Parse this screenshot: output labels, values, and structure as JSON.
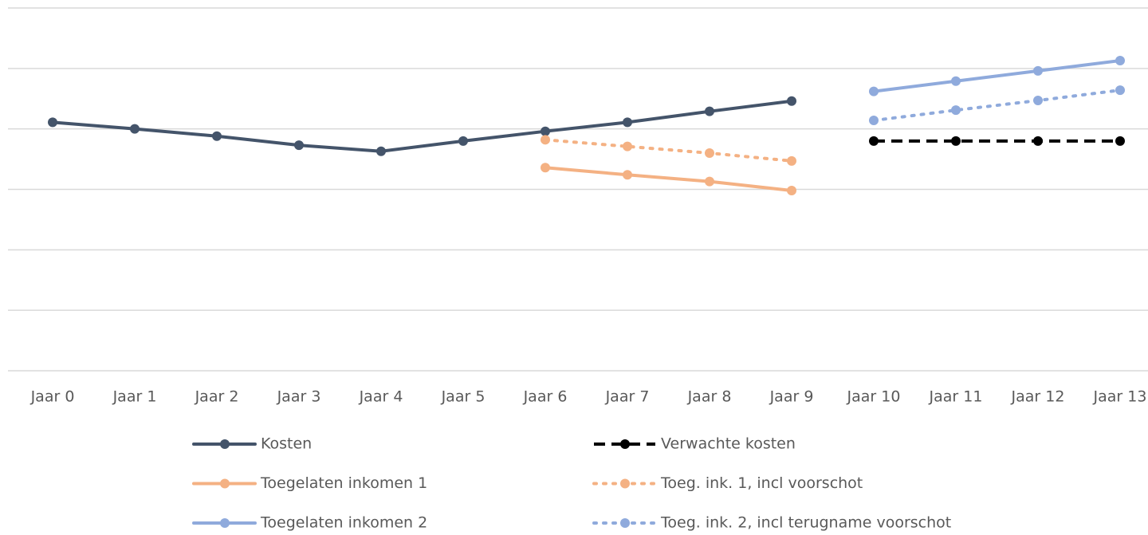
{
  "chart_data": {
    "type": "line",
    "categories": [
      "Jaar 0",
      "Jaar 1",
      "Jaar 2",
      "Jaar 3",
      "Jaar 4",
      "Jaar 5",
      "Jaar 6",
      "Jaar 7",
      "Jaar 8",
      "Jaar 9",
      "Jaar 10",
      "Jaar 11",
      "Jaar 12",
      "Jaar 13"
    ],
    "series": [
      {
        "name": "Kosten",
        "color": "#44546a",
        "dash": "solid",
        "values": [
          4.11,
          4.0,
          3.88,
          3.73,
          3.63,
          3.8,
          3.96,
          4.11,
          4.29,
          4.46,
          null,
          null,
          null,
          null
        ]
      },
      {
        "name": "Verwachte kosten",
        "color": "#000000",
        "dash": "dashed",
        "values": [
          null,
          null,
          null,
          null,
          null,
          null,
          null,
          null,
          null,
          null,
          3.8,
          3.8,
          3.8,
          3.8
        ]
      },
      {
        "name": "Toegelaten inkomen 1",
        "color": "#f4b183",
        "dash": "solid",
        "values": [
          null,
          null,
          null,
          null,
          null,
          null,
          3.36,
          3.24,
          3.13,
          2.98,
          null,
          null,
          null,
          null
        ]
      },
      {
        "name": "Toeg. ink. 1, incl voorschot",
        "color": "#f4b183",
        "dash": "dotted",
        "values": [
          null,
          null,
          null,
          null,
          null,
          null,
          3.82,
          3.71,
          3.6,
          3.47,
          null,
          null,
          null,
          null
        ]
      },
      {
        "name": "Toegelaten inkomen 2",
        "color": "#8faadc",
        "dash": "solid",
        "values": [
          null,
          null,
          null,
          null,
          null,
          null,
          null,
          null,
          null,
          null,
          4.62,
          4.79,
          4.96,
          5.13
        ]
      },
      {
        "name": "Toeg. ink. 2, incl terugname voorschot",
        "color": "#8faadc",
        "dash": "dotted",
        "values": [
          null,
          null,
          null,
          null,
          null,
          null,
          null,
          null,
          null,
          null,
          4.14,
          4.31,
          4.47,
          4.64
        ]
      }
    ],
    "ylim": [
      0,
      6
    ],
    "yticks": [
      0,
      1,
      2,
      3,
      4,
      5,
      6
    ],
    "grid": true
  }
}
